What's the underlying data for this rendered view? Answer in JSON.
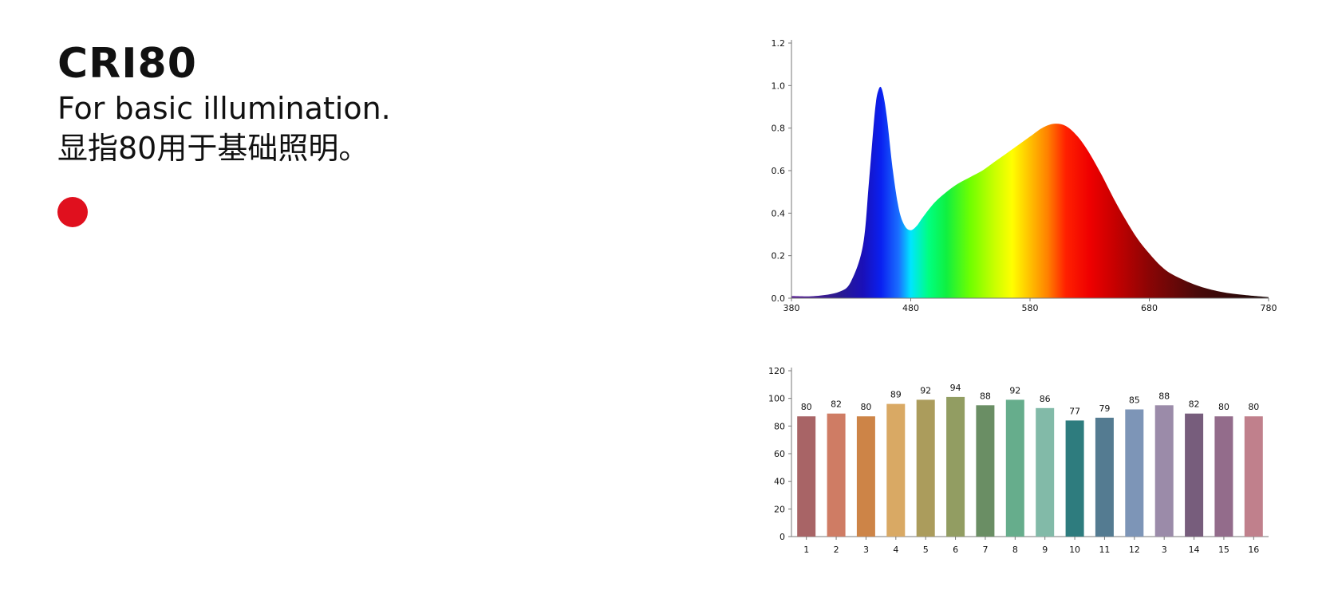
{
  "header": {
    "title": "CRI80",
    "subtitle_en": "For basic illumination.",
    "subtitle_cn": "显指80用于基础照明。"
  },
  "accent_dot": {
    "color": "#e0101e"
  },
  "chart_data": [
    {
      "type": "area",
      "title": "",
      "xlabel": "",
      "ylabel": "",
      "xlim": [
        380,
        780
      ],
      "ylim": [
        0,
        1.2
      ],
      "x_ticks": [
        380,
        480,
        580,
        680,
        780
      ],
      "y_ticks": [
        0.0,
        0.2,
        0.4,
        0.6,
        0.8,
        1.0,
        1.2
      ],
      "y_tick_labels": [
        "0.0",
        "0.2",
        "0.4",
        "0.6",
        "0.8",
        "1.0",
        "1.2"
      ],
      "grid": false,
      "fill": "visible-spectrum",
      "x": [
        380,
        400,
        420,
        430,
        440,
        445,
        450,
        453,
        456,
        460,
        465,
        470,
        475,
        480,
        485,
        490,
        500,
        510,
        520,
        530,
        540,
        550,
        560,
        570,
        580,
        590,
        600,
        610,
        620,
        630,
        640,
        650,
        660,
        670,
        680,
        690,
        700,
        720,
        740,
        760,
        780
      ],
      "y": [
        0.01,
        0.01,
        0.03,
        0.08,
        0.25,
        0.55,
        0.88,
        0.98,
        0.98,
        0.85,
        0.6,
        0.42,
        0.34,
        0.32,
        0.34,
        0.38,
        0.45,
        0.5,
        0.54,
        0.57,
        0.6,
        0.64,
        0.68,
        0.72,
        0.76,
        0.8,
        0.82,
        0.81,
        0.76,
        0.68,
        0.58,
        0.47,
        0.37,
        0.28,
        0.21,
        0.15,
        0.11,
        0.06,
        0.03,
        0.015,
        0.005
      ]
    },
    {
      "type": "bar",
      "title": "",
      "xlabel": "",
      "ylabel": "",
      "ylim": [
        0,
        120
      ],
      "y_ticks": [
        0,
        20,
        40,
        60,
        80,
        100,
        120
      ],
      "categories": [
        "1",
        "2",
        "3",
        "4",
        "5",
        "6",
        "7",
        "8",
        "9",
        "10",
        "11",
        "12",
        "3",
        "14",
        "15",
        "16"
      ],
      "values": [
        80,
        82,
        80,
        89,
        92,
        94,
        88,
        92,
        86,
        77,
        79,
        85,
        88,
        82,
        80,
        80
      ],
      "bar_heights": [
        87,
        89,
        87,
        96,
        99,
        101,
        95,
        99,
        93,
        84,
        86,
        92,
        95,
        89,
        87,
        87
      ],
      "colors": [
        "#a86466",
        "#cf7c64",
        "#cd8447",
        "#d9a964",
        "#ab9c5c",
        "#929d62",
        "#6a8e64",
        "#66ad8c",
        "#82baa8",
        "#2e7c7e",
        "#547b91",
        "#7d95b7",
        "#9b8ba9",
        "#775d7c",
        "#936c8b",
        "#c0808c"
      ],
      "grid": false
    }
  ]
}
